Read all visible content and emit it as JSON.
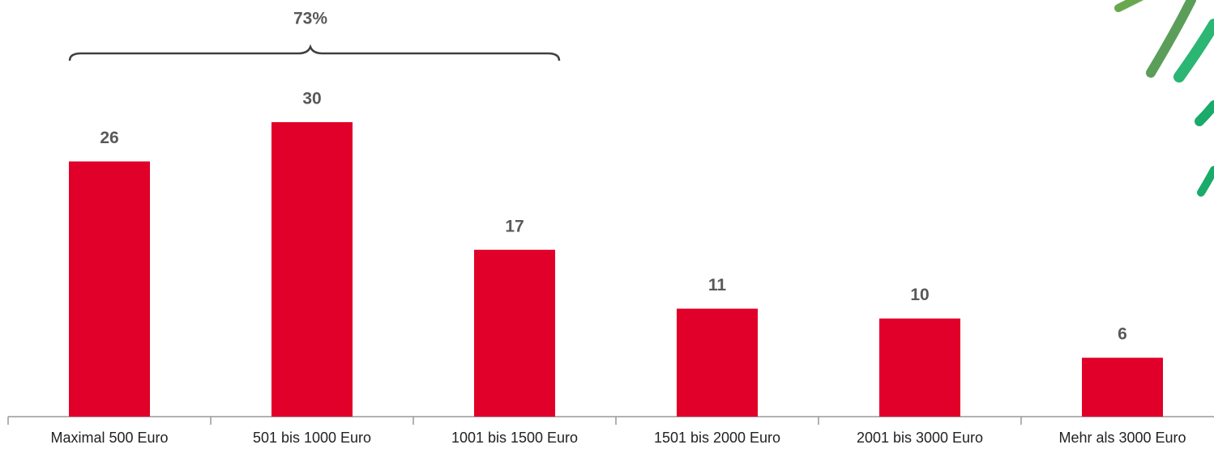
{
  "chart_data": {
    "type": "bar",
    "categories": [
      "Maximal 500 Euro",
      "501 bis 1000 Euro",
      "1001 bis 1500 Euro",
      "1501 bis 2000 Euro",
      "2001 bis 3000 Euro",
      "Mehr als 3000 Euro"
    ],
    "values": [
      26,
      30,
      17,
      11,
      10,
      6
    ],
    "color": "#e00029",
    "annotation": "73%"
  }
}
